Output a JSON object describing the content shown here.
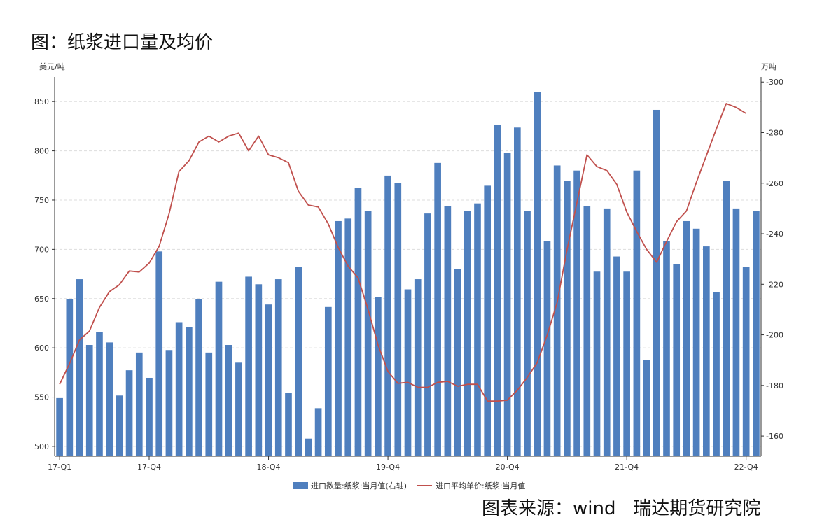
{
  "title": "图：纸浆进口量及均价",
  "source": "图表来源：wind   瑞达期货研究院",
  "colors": {
    "bar": "#4f7fbe",
    "line": "#c0504d",
    "grid": "#dddddd",
    "axis": "#333333"
  },
  "chart_data": {
    "type": "bar+line",
    "left_unit": "美元/吨",
    "right_unit": "万吨",
    "left_axis": {
      "min": 490,
      "max": 875,
      "ticks": [
        500,
        550,
        600,
        650,
        700,
        750,
        800,
        850
      ]
    },
    "right_axis": {
      "min": 152,
      "max": 302,
      "ticks": [
        160,
        180,
        200,
        220,
        240,
        260,
        280,
        300
      ]
    },
    "x_tick_labels": [
      "17-Q1",
      "17-Q4",
      "18-Q4",
      "19-Q4",
      "20-Q4",
      "21-Q4",
      "22-Q4"
    ],
    "x_tick_index": [
      0,
      9,
      21,
      33,
      45,
      57,
      69
    ],
    "series": [
      {
        "name": "进口数量:纸浆:当月值(右轴)",
        "kind": "bar",
        "axis": "right",
        "values": [
          175,
          214,
          222,
          196,
          201,
          197,
          176,
          186,
          193,
          183,
          233,
          194,
          205,
          203,
          214,
          193,
          221,
          196,
          189,
          223,
          220,
          212,
          222,
          177,
          227,
          159,
          171,
          211,
          245,
          246,
          258,
          249,
          215,
          263,
          260,
          218,
          222,
          248,
          268,
          251,
          226,
          249,
          252,
          259,
          283,
          272,
          282,
          249,
          296,
          237,
          267,
          261,
          265,
          251,
          225,
          250,
          231,
          225,
          265,
          190,
          289,
          237,
          228,
          245,
          242,
          235,
          217,
          261,
          250,
          227,
          249
        ]
      },
      {
        "name": "进口平均单价:纸浆:当月值",
        "kind": "line",
        "axis": "left",
        "values": [
          563,
          584,
          608,
          617,
          641,
          657,
          664,
          678,
          677,
          686,
          703,
          736,
          779,
          790,
          809,
          815,
          809,
          815,
          818,
          800,
          815,
          796,
          793,
          788,
          759,
          745,
          743,
          726,
          702,
          683,
          671,
          639,
          603,
          576,
          564,
          565,
          560,
          560,
          565,
          566,
          561,
          563,
          563,
          546,
          546,
          547,
          557,
          570,
          585,
          613,
          646,
          700,
          748,
          796,
          784,
          780,
          766,
          738,
          718,
          700,
          687,
          708,
          728,
          739,
          768,
          795,
          822,
          848,
          844,
          838
        ]
      }
    ]
  }
}
